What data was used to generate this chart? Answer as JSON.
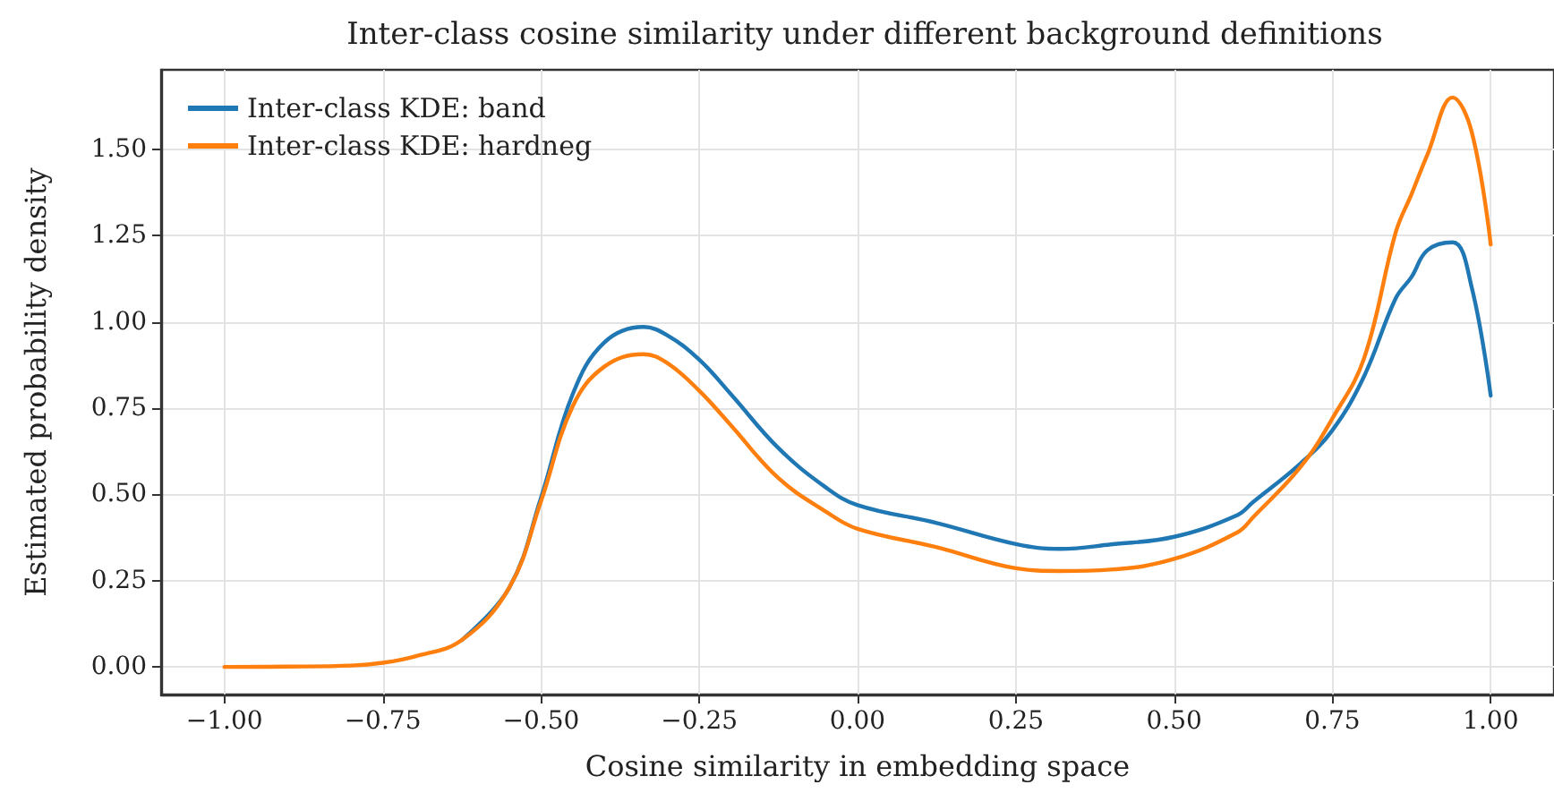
{
  "chart_data": {
    "type": "line",
    "title": "Inter-class cosine similarity under different background definitions",
    "xlabel": "Cosine similarity in embedding space",
    "ylabel": "Estimated probability density",
    "x": [
      -1,
      -0.9,
      -0.8,
      -0.75,
      -0.7,
      -0.625,
      -0.55,
      -0.5,
      -0.45,
      -0.4,
      -0.338,
      -0.3,
      -0.25,
      -0.2,
      -0.125,
      -0.05,
      0,
      0.125,
      0.25,
      0.32,
      0.4,
      0.5,
      0.6,
      0.625,
      0.7,
      0.75,
      0.8,
      0.85,
      0.875,
      0.9,
      0.94,
      0.97,
      1.0
    ],
    "series": [
      {
        "name": "Inter-class KDE: band",
        "color": "#1f77b4",
        "values": [
          null,
          null,
          null,
          null,
          null,
          0.078,
          0.23,
          0.49,
          0.79,
          0.94,
          0.985,
          0.96,
          0.89,
          0.79,
          0.634,
          0.52,
          0.469,
          0.417,
          0.356,
          0.342,
          0.355,
          0.377,
          0.44,
          0.478,
          0.59,
          0.686,
          0.842,
          1.068,
          1.13,
          1.207,
          1.23,
          1.1,
          0.786
        ]
      },
      {
        "name": "Inter-class KDE: hardneg",
        "color": "#ff7f0e",
        "values": [
          0,
          0.001,
          0.004,
          0.012,
          0.03,
          0.078,
          0.23,
          0.48,
          0.755,
          0.87,
          0.906,
          0.88,
          0.8,
          0.7,
          0.547,
          0.45,
          0.4,
          0.347,
          0.286,
          0.278,
          0.282,
          0.313,
          0.39,
          0.434,
          0.58,
          0.72,
          0.894,
          1.259,
          1.37,
          1.484,
          1.65,
          1.55,
          1.224
        ]
      }
    ],
    "xlim": [
      -1.1,
      1.1
    ],
    "ylim": [
      -0.08,
      1.73
    ],
    "xticks": [
      {
        "value": -1,
        "label": "−1.00"
      },
      {
        "value": -0.75,
        "label": "−0.75"
      },
      {
        "value": -0.5,
        "label": "−0.50"
      },
      {
        "value": -0.25,
        "label": "−0.25"
      },
      {
        "value": 0,
        "label": "0.00"
      },
      {
        "value": 0.25,
        "label": "0.25"
      },
      {
        "value": 0.5,
        "label": "0.50"
      },
      {
        "value": 0.75,
        "label": "0.75"
      },
      {
        "value": 1,
        "label": "1.00"
      }
    ],
    "yticks": [
      {
        "value": 0,
        "label": "0.00"
      },
      {
        "value": 0.25,
        "label": "0.25"
      },
      {
        "value": 0.5,
        "label": "0.50"
      },
      {
        "value": 0.75,
        "label": "0.75"
      },
      {
        "value": 1,
        "label": "1.00"
      },
      {
        "value": 1.25,
        "label": "1.25"
      },
      {
        "value": 1.5,
        "label": "1.50"
      }
    ],
    "grid": true,
    "legend": "top left",
    "marker": "none",
    "line_style": "solid"
  }
}
